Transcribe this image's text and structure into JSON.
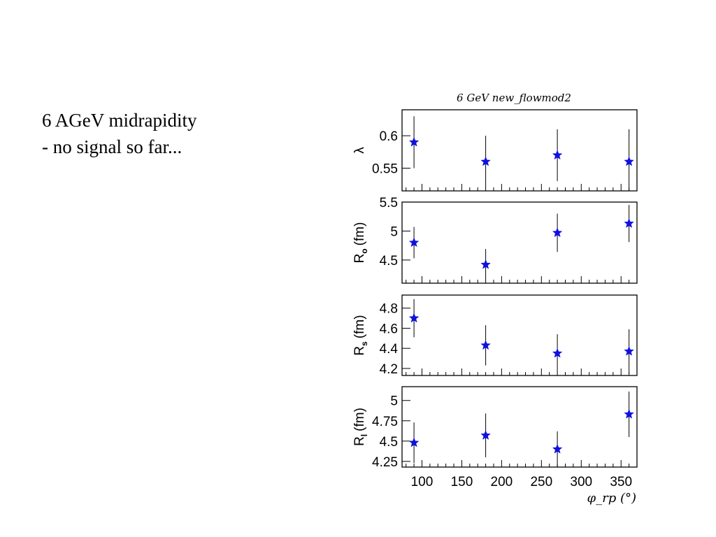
{
  "slide": {
    "line1": "6 AGeV midrapidity",
    "line2": "- no signal so far..."
  },
  "colors": {
    "marker": "#1010e0",
    "axis": "#000000"
  },
  "marker_icon": "star-icon",
  "chart_data": {
    "type": "scatter",
    "title": "6 GeV new_flowmod2",
    "xlabel": "φ_rp (°)",
    "xlim": [
      75,
      370
    ],
    "xticks": [
      100,
      150,
      200,
      250,
      300,
      350
    ],
    "x": [
      90,
      180,
      270,
      360
    ],
    "panels": [
      {
        "ylabel": "λ",
        "ylim": [
          0.515,
          0.64
        ],
        "yticks": [
          "0.6",
          "0.55"
        ],
        "values": [
          0.59,
          0.56,
          0.57,
          0.56
        ],
        "errors": [
          0.04,
          0.04,
          0.04,
          0.05
        ]
      },
      {
        "ylabel": "R_o (fm)",
        "ylabel_main": "R",
        "ylabel_sub": "o",
        "ylabel_unit": "(fm)",
        "ylim": [
          4.1,
          5.5
        ],
        "yticks": [
          "5.5",
          "5",
          "4.5"
        ],
        "values": [
          4.8,
          4.42,
          4.97,
          5.13
        ],
        "errors": [
          0.27,
          0.27,
          0.33,
          0.32
        ]
      },
      {
        "ylabel": "R_s (fm)",
        "ylabel_main": "R",
        "ylabel_sub": "s",
        "ylabel_unit": "(fm)",
        "ylim": [
          4.13,
          4.93
        ],
        "yticks": [
          "4.8",
          "4.6",
          "4.4",
          "4.2"
        ],
        "values": [
          4.7,
          4.43,
          4.35,
          4.37
        ],
        "errors": [
          0.19,
          0.2,
          0.19,
          0.22
        ]
      },
      {
        "ylabel": "R_l (fm)",
        "ylabel_main": "R",
        "ylabel_sub": "l",
        "ylabel_unit": "(fm)",
        "ylim": [
          4.18,
          5.17
        ],
        "yticks": [
          "5",
          "4.75",
          "4.5",
          "4.25"
        ],
        "values": [
          4.48,
          4.57,
          4.4,
          4.83
        ],
        "errors": [
          0.25,
          0.27,
          0.22,
          0.28
        ]
      }
    ]
  }
}
